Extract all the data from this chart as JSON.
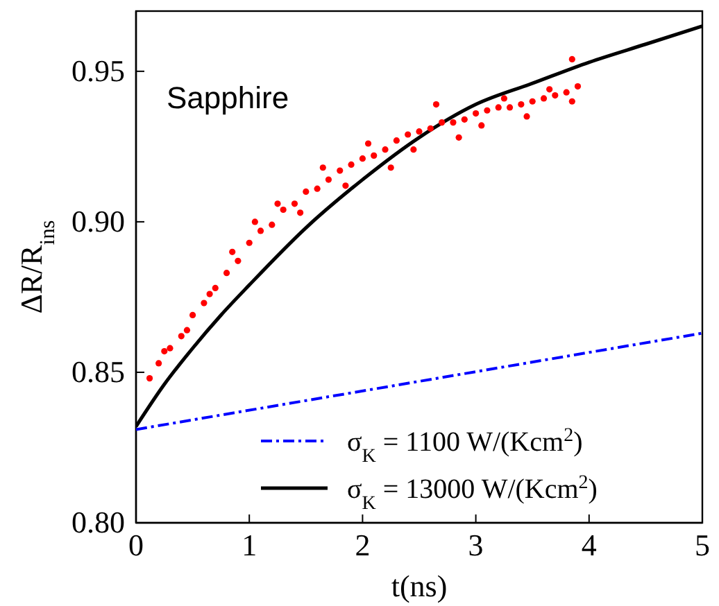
{
  "chart_data": {
    "type": "scatter",
    "xlabel": "t(ns)",
    "ylabel": "ΔR/R$_{ins}$",
    "annotations": [
      "Sapphire"
    ],
    "xlim": [
      0,
      5
    ],
    "ylim": [
      0.8,
      0.97
    ],
    "xticks": [
      0,
      1,
      2,
      3,
      4,
      5
    ],
    "yticks": [
      {
        "value": 0.8,
        "label": "0.80"
      },
      0.85,
      {
        "value": 0.9,
        "label": "0.90"
      },
      0.95
    ],
    "grid": false,
    "legend": "bottom right",
    "series": [
      {
        "type": "line",
        "name": "σ$_{K}$ = 1100 W/(Kcm$^{2}$)",
        "color": "#0000ff",
        "line_style": "dashed",
        "x": [
          0,
          5
        ],
        "values": [
          0.831,
          0.863
        ]
      },
      {
        "type": "line",
        "name": "σ$_{K}$ = 13000 W/(Kcm$^{2}$)",
        "color": "#000000",
        "line_style": "solid",
        "x": [
          0,
          0.25,
          0.5,
          0.75,
          1,
          1.5,
          2,
          2.5,
          3,
          3.5,
          4,
          4.5,
          5
        ],
        "values": [
          0.832,
          0.846,
          0.858,
          0.869,
          0.879,
          0.898,
          0.914,
          0.928,
          0.939,
          0.946,
          0.953,
          0.959,
          0.965
        ]
      },
      {
        "color": "#ff0000",
        "marker": "circle",
        "x": [
          0.12,
          0.2,
          0.3,
          0.4,
          0.5,
          0.6,
          0.7,
          0.8,
          0.9,
          1.0,
          1.1,
          1.2,
          1.3,
          1.4,
          1.5,
          1.6,
          1.7,
          1.8,
          1.9,
          2.0,
          2.1,
          2.2,
          2.3,
          2.4,
          2.5,
          2.6,
          2.7,
          2.8,
          2.9,
          3.0,
          3.1,
          3.2,
          3.3,
          3.4,
          3.5,
          3.6,
          3.7,
          3.8,
          3.9,
          0.25,
          0.45,
          0.65,
          0.85,
          1.05,
          1.25,
          1.45,
          1.65,
          1.85,
          2.05,
          2.25,
          2.45,
          2.65,
          2.85,
          3.05,
          3.25,
          3.45,
          3.65,
          3.85,
          3.85
        ],
        "values": [
          0.848,
          0.853,
          0.858,
          0.862,
          0.869,
          0.873,
          0.878,
          0.883,
          0.887,
          0.893,
          0.897,
          0.899,
          0.904,
          0.906,
          0.91,
          0.911,
          0.914,
          0.917,
          0.919,
          0.921,
          0.922,
          0.924,
          0.927,
          0.929,
          0.93,
          0.931,
          0.933,
          0.933,
          0.934,
          0.936,
          0.937,
          0.938,
          0.938,
          0.939,
          0.94,
          0.941,
          0.942,
          0.943,
          0.945,
          0.857,
          0.864,
          0.876,
          0.89,
          0.9,
          0.906,
          0.903,
          0.918,
          0.912,
          0.926,
          0.918,
          0.924,
          0.939,
          0.928,
          0.932,
          0.941,
          0.935,
          0.944,
          0.954,
          0.94
        ]
      }
    ]
  }
}
